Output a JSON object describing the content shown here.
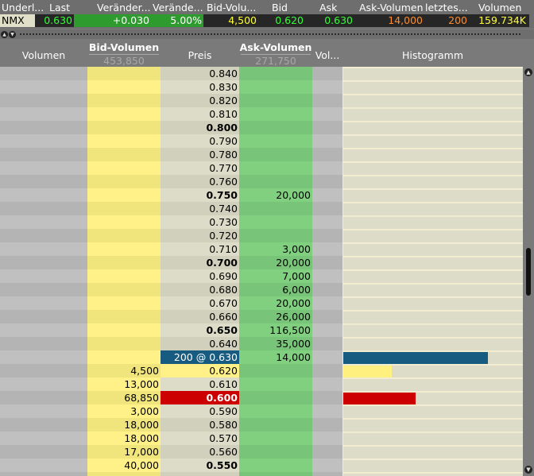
{
  "quote_header": {
    "columns": [
      "Underl...",
      "Last",
      "Veränder...",
      "Verände...",
      "Bid-Volu...",
      "Bid",
      "Ask",
      "Ask-Volumen",
      "letztes...",
      "Volumen"
    ],
    "values": [
      "NMX",
      "0.630",
      "+0.030",
      "5.00%",
      "4,500",
      "0.620",
      "0.630",
      "14,000",
      "200",
      "159.734K"
    ]
  },
  "colors": {
    "up_green": "#2e9b2e",
    "bid_yellow": "#fff080",
    "ask_green": "#7ed07e",
    "last_blue": "#175c80",
    "red": "#cc0000",
    "orange": "#ff8c28"
  },
  "book_header": {
    "volumen": "Volumen",
    "bid_volumen": "Bid-Volumen",
    "bid_total": "453,850",
    "preis": "Preis",
    "ask_volumen": "Ask-Volumen",
    "ask_total": "271,750",
    "vol": "Vol...",
    "histogramm": "Histogramm"
  },
  "rows": [
    {
      "price": "0.840",
      "ask": ""
    },
    {
      "price": "0.830",
      "ask": ""
    },
    {
      "price": "0.820",
      "ask": ""
    },
    {
      "price": "0.810",
      "ask": ""
    },
    {
      "price": "0.800",
      "ask": "",
      "bold": true
    },
    {
      "price": "0.790",
      "ask": ""
    },
    {
      "price": "0.780",
      "ask": ""
    },
    {
      "price": "0.770",
      "ask": ""
    },
    {
      "price": "0.760",
      "ask": ""
    },
    {
      "price": "0.750",
      "ask": "20,000",
      "bold": true
    },
    {
      "price": "0.740",
      "ask": ""
    },
    {
      "price": "0.730",
      "ask": ""
    },
    {
      "price": "0.720",
      "ask": ""
    },
    {
      "price": "0.710",
      "ask": "3,000"
    },
    {
      "price": "0.700",
      "ask": "20,000",
      "bold": true
    },
    {
      "price": "0.690",
      "ask": "7,000"
    },
    {
      "price": "0.680",
      "ask": "6,000"
    },
    {
      "price": "0.670",
      "ask": "20,000"
    },
    {
      "price": "0.660",
      "ask": "26,000"
    },
    {
      "price": "0.650",
      "ask": "116,500",
      "bold": true
    },
    {
      "price": "0.640",
      "ask": "35,000"
    },
    {
      "price": "200 @ 0.630",
      "ask": "14,000",
      "style": "last",
      "hist": 0.8,
      "hist_color": "#175c80"
    },
    {
      "price": "0.620",
      "bid": "4,500",
      "style": "bid",
      "hist": 0.27,
      "hist_color": "#fff080"
    },
    {
      "price": "0.610",
      "bid": "13,000"
    },
    {
      "price": "0.600",
      "bid": "68,850",
      "bold": true,
      "style": "red",
      "hist": 0.4,
      "hist_color": "#cc0000"
    },
    {
      "price": "0.590",
      "bid": "3,000"
    },
    {
      "price": "0.580",
      "bid": "18,000"
    },
    {
      "price": "0.570",
      "bid": "18,000"
    },
    {
      "price": "0.560",
      "bid": "17,000"
    },
    {
      "price": "0.550",
      "bid": "40,000",
      "bold": true
    },
    {
      "price": "",
      "bid": ""
    }
  ]
}
